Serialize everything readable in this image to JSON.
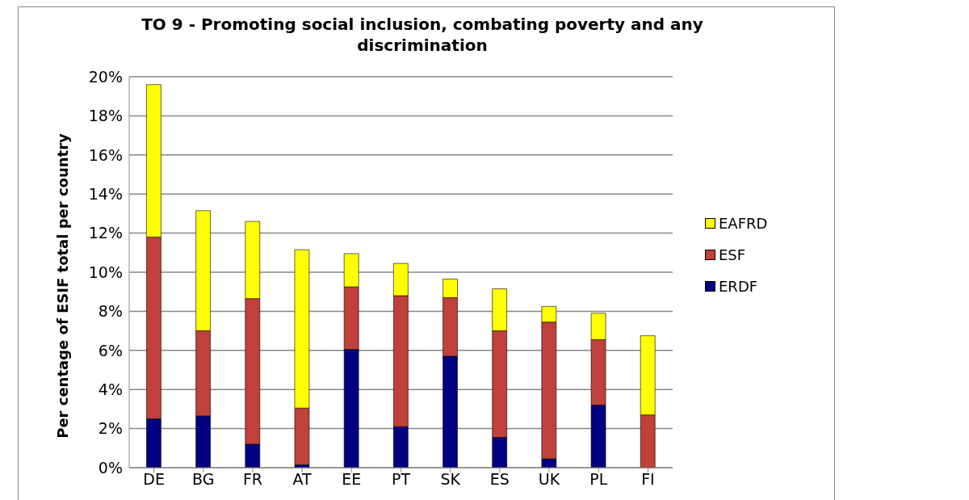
{
  "chart_data": {
    "type": "bar",
    "title": "TO 9 - Promoting social inclusion, combating poverty and any discrimination",
    "ylabel": "Per centage of ESIF total per country",
    "categories": [
      "DE",
      "BG",
      "FR",
      "AT",
      "EE",
      "PT",
      "SK",
      "ES",
      "UK",
      "PL",
      "FI"
    ],
    "stacked": true,
    "series": [
      {
        "name": "ERDF",
        "color": "#000080",
        "values": [
          2.5,
          2.65,
          1.2,
          0.15,
          6.05,
          2.1,
          5.7,
          1.55,
          0.45,
          3.2,
          0
        ]
      },
      {
        "name": "ESF",
        "color": "#c0403a",
        "values": [
          9.3,
          4.35,
          7.45,
          2.9,
          3.2,
          6.7,
          3.0,
          5.45,
          7.0,
          3.35,
          2.7
        ]
      },
      {
        "name": "EAFRD",
        "color": "#ffff00",
        "values": [
          7.8,
          6.15,
          3.95,
          8.1,
          1.7,
          1.65,
          0.95,
          2.15,
          0.8,
          1.35,
          4.05
        ]
      }
    ],
    "ylim": [
      0,
      20
    ],
    "yticks": [
      {
        "value": 0,
        "label": "0%"
      },
      {
        "value": 2,
        "label": "2%"
      },
      {
        "value": 4,
        "label": "4%"
      },
      {
        "value": 6,
        "label": "6%"
      },
      {
        "value": 8,
        "label": "8%"
      },
      {
        "value": 10,
        "label": "10%"
      },
      {
        "value": 12,
        "label": "12%"
      },
      {
        "value": 14,
        "label": "14%"
      },
      {
        "value": 16,
        "label": "16%"
      },
      {
        "value": 18,
        "label": "18%"
      },
      {
        "value": 20,
        "label": "20%"
      }
    ],
    "grid": "y",
    "legend": "right"
  }
}
